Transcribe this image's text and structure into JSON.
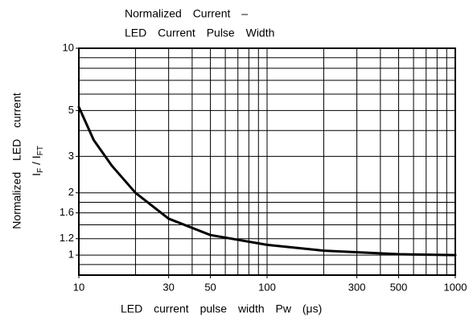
{
  "chart_data": {
    "type": "line",
    "title": [
      "Normalized Current –",
      "LED Current Pulse Width"
    ],
    "xlabel": "LED current pulse width Pw (μs)",
    "ylabel": [
      "Normalized LED current",
      [
        "I",
        "F",
        " / I",
        "FT"
      ]
    ],
    "x": [
      10,
      12,
      15,
      20,
      30,
      50,
      100,
      200,
      500,
      1000
    ],
    "series": [
      {
        "name": "Normalized current",
        "color": "#000000",
        "values": [
          5.2,
          3.6,
          2.7,
          2.0,
          1.5,
          1.25,
          1.12,
          1.05,
          1.01,
          1.0
        ]
      }
    ],
    "xscale": "log",
    "yscale": "log",
    "xlim": [
      10,
      1000
    ],
    "ylim": [
      0.8,
      10
    ],
    "xticks": [
      10,
      30,
      50,
      100,
      300,
      500,
      1000
    ],
    "yticks": [
      1,
      1.2,
      1.6,
      2,
      3,
      5,
      10
    ],
    "xgrid": [
      20,
      30,
      40,
      50,
      60,
      70,
      80,
      90,
      100,
      200,
      300,
      400,
      500,
      600,
      700,
      800,
      900
    ],
    "ygrid": [
      0.9,
      1,
      1.2,
      1.4,
      1.6,
      1.8,
      2,
      3,
      4,
      5,
      6,
      7,
      8,
      9
    ],
    "grid": true
  }
}
